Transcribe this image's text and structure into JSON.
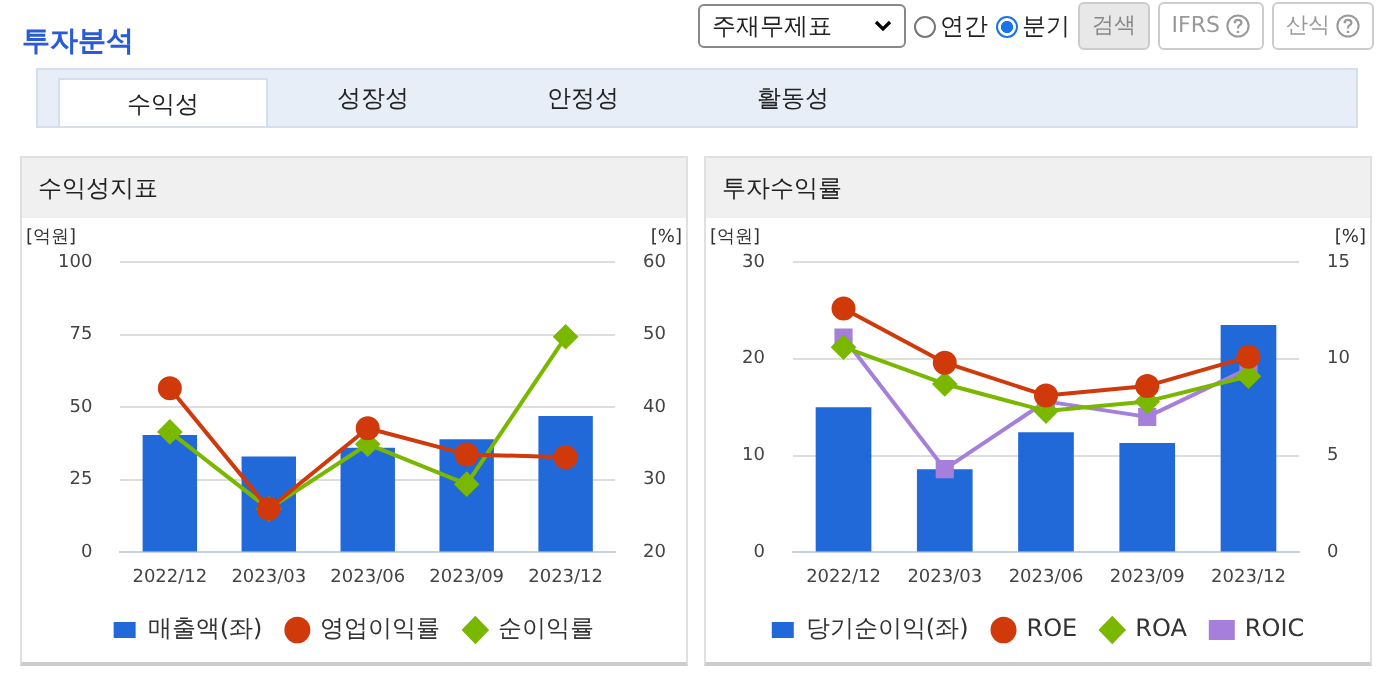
{
  "chart_data": [
    {
      "type": "other",
      "title": "투자분석",
      "annotations": [
        "주재무제표",
        "연간",
        "분기",
        "검색",
        "IFRS",
        "산식",
        "수익성",
        "성장성",
        "안정성",
        "활동성"
      ]
    },
    {
      "type": "bar",
      "title": "수익성지표",
      "ylabel": "[억원]",
      "y2label": "[%]",
      "categories": [
        "2022/12",
        "2023/03",
        "2023/06",
        "2023/09",
        "2023/12"
      ],
      "series": [
        {
          "name": "매출액(좌)",
          "type": "bar",
          "color": "#2169d8",
          "values": [
            40.4,
            33,
            36,
            39,
            47
          ]
        },
        {
          "name": "영업이익률",
          "type": "line",
          "axis": "y2",
          "marker": "circle",
          "color": "#d03a0a",
          "values": [
            42.6,
            26,
            37.1,
            33.5,
            33.1
          ]
        },
        {
          "name": "순이익률",
          "type": "line",
          "axis": "y2",
          "marker": "diamond",
          "color": "#7ab800",
          "values": [
            36.6,
            26,
            34.9,
            29.4,
            49.7
          ]
        }
      ],
      "ylim": [
        0,
        100
      ],
      "yticks": [
        0,
        25,
        50,
        75,
        100
      ],
      "y2lim": [
        20,
        60
      ],
      "y2ticks": [
        20,
        30,
        40,
        50,
        60
      ],
      "grid": "y",
      "legend": "bottom"
    },
    {
      "type": "bar",
      "title": "투자수익률",
      "ylabel": "[억원]",
      "y2label": "[%]",
      "categories": [
        "2022/12",
        "2023/03",
        "2023/06",
        "2023/09",
        "2023/12"
      ],
      "series": [
        {
          "name": "당기순이익(좌)",
          "type": "bar",
          "color": "#2169d8",
          "values": [
            15,
            8.6,
            12.4,
            11.3,
            23.5
          ]
        },
        {
          "name": "ROE",
          "type": "line",
          "axis": "y2",
          "marker": "circle",
          "color": "#d03a0a",
          "values": [
            12.6,
            9.8,
            8.1,
            8.6,
            10.1
          ]
        },
        {
          "name": "ROA",
          "type": "line",
          "axis": "y2",
          "marker": "diamond",
          "color": "#7ab800",
          "values": [
            10.6,
            8.7,
            7.3,
            7.8,
            9.1
          ]
        },
        {
          "name": "ROIC",
          "type": "line",
          "axis": "y2",
          "marker": "square",
          "color": "#a57fdb",
          "values": [
            11.1,
            4.3,
            7.8,
            7.0,
            9.5
          ]
        }
      ],
      "ylim": [
        0,
        30
      ],
      "yticks": [
        0,
        10,
        20,
        30
      ],
      "y2lim": [
        0,
        15
      ],
      "y2ticks": [
        0,
        5,
        10,
        15
      ],
      "grid": "y",
      "legend": "bottom"
    }
  ]
}
